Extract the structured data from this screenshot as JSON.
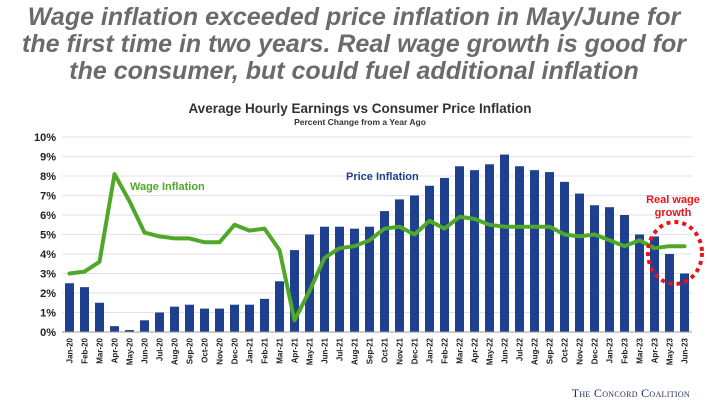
{
  "headline": {
    "line1": "Wage inflation exceeded price inflation in May/June for",
    "line2": "the first time in two years. Real wage growth is good for",
    "line3": "the consumer, but could fuel additional inflation"
  },
  "footer": {
    "source": "The Concord Coalition"
  },
  "colors": {
    "bars": "#1f3f8f",
    "wage_line": "#4fa82a",
    "annotation": "#e8141b",
    "price_label": "#1f3f8f",
    "grid": "#d9d9d9"
  },
  "chart_data": {
    "type": "bar",
    "title": "Average Hourly Earnings vs Consumer Price Inflation",
    "subtitle": "Percent Change from a Year Ago",
    "xlabel": "",
    "ylabel": "",
    "ylim": [
      0,
      10
    ],
    "yticks": [
      "0%",
      "1%",
      "2%",
      "3%",
      "4%",
      "5%",
      "6%",
      "7%",
      "8%",
      "9%",
      "10%"
    ],
    "grid": true,
    "categories": [
      "Jan-20",
      "Feb-20",
      "Mar-20",
      "Apr-20",
      "May-20",
      "Jun-20",
      "Jul-20",
      "Aug-20",
      "Sep-20",
      "Oct-20",
      "Nov-20",
      "Dec-20",
      "Jan-21",
      "Feb-21",
      "Mar-21",
      "Apr-21",
      "May-21",
      "Jun-21",
      "Jul-21",
      "Aug-21",
      "Sep-21",
      "Oct-21",
      "Nov-21",
      "Dec-21",
      "Jan-22",
      "Feb-22",
      "Mar-22",
      "Apr-22",
      "May-22",
      "Jun-22",
      "Jul-22",
      "Aug-22",
      "Sep-22",
      "Oct-22",
      "Nov-22",
      "Dec-22",
      "Jan-23",
      "Feb-23",
      "Mar-23",
      "Apr-23",
      "May-23",
      "Jun-23"
    ],
    "tick_labels": [
      "Jan-20",
      "Mar-20",
      "May-20",
      "Jul-20",
      "Sep-20",
      "Nov-20",
      "Jan-21",
      "Mar-21",
      "May-21",
      "Jul-21",
      "Sep-21",
      "Nov-21",
      "Jan-22",
      "Mar-22",
      "May-22",
      "Jul-22",
      "Sep-22",
      "Nov-22",
      "Jan-23",
      "Mar-23",
      "May-23",
      "Feb-20",
      "Apr-20",
      "Jun-20",
      "Aug-20",
      "Oct-20",
      "Dec-20",
      "Feb-21",
      "Apr-21",
      "Jun-21",
      "Aug-21",
      "Oct-21",
      "Dec-21",
      "Feb-22",
      "Apr-22",
      "Jun-22",
      "Aug-22",
      "Oct-22",
      "Dec-22",
      "Feb-23",
      "Apr-23",
      "Jun-23"
    ],
    "series": [
      {
        "name": "Price Inflation",
        "kind": "bar",
        "values": [
          2.5,
          2.3,
          1.5,
          0.3,
          0.1,
          0.6,
          1.0,
          1.3,
          1.4,
          1.2,
          1.2,
          1.4,
          1.4,
          1.7,
          2.6,
          4.2,
          5.0,
          5.4,
          5.4,
          5.3,
          5.4,
          6.2,
          6.8,
          7.0,
          7.5,
          7.9,
          8.5,
          8.3,
          8.6,
          9.1,
          8.5,
          8.3,
          8.2,
          7.7,
          7.1,
          6.5,
          6.4,
          6.0,
          5.0,
          4.9,
          4.0,
          3.0
        ]
      },
      {
        "name": "Wage Inflation",
        "kind": "line",
        "values": [
          3.0,
          3.1,
          3.6,
          8.1,
          6.7,
          5.1,
          4.9,
          4.8,
          4.8,
          4.6,
          4.6,
          5.5,
          5.2,
          5.3,
          4.2,
          0.6,
          2.1,
          3.8,
          4.3,
          4.4,
          4.7,
          5.3,
          5.4,
          5.0,
          5.7,
          5.3,
          5.9,
          5.8,
          5.5,
          5.4,
          5.4,
          5.4,
          5.4,
          5.0,
          4.9,
          5.0,
          4.7,
          4.4,
          4.7,
          4.3,
          4.4,
          4.4
        ]
      }
    ],
    "annotations": [
      {
        "text_line1": "Real wage",
        "text_line2": "growth"
      }
    ]
  }
}
